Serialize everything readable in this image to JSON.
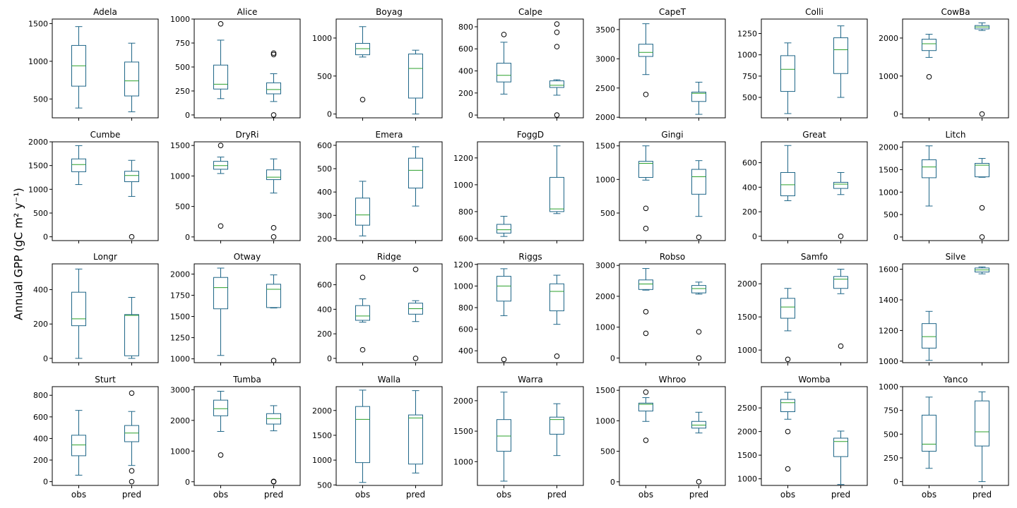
{
  "figure": {
    "ylabel": "Annual GPP (gC m² y⁻¹)",
    "box_color": "#1f6688",
    "median_color": "#2ca02c",
    "frame_color": "#000000"
  },
  "chart_data": [
    {
      "type": "box",
      "title": "Adela",
      "categories": [
        "obs",
        "pred"
      ],
      "ylim": [
        250,
        1560
      ],
      "yticks": [
        500,
        1000,
        1500
      ],
      "boxes": [
        {
          "min": 380,
          "q1": 670,
          "median": 940,
          "q3": 1210,
          "max": 1460,
          "outliers": []
        },
        {
          "min": 330,
          "q1": 540,
          "median": 740,
          "q3": 990,
          "max": 1240,
          "outliers": []
        }
      ]
    },
    {
      "type": "box",
      "title": "Alice",
      "categories": [
        "obs",
        "pred"
      ],
      "ylim": [
        -30,
        1000
      ],
      "yticks": [
        0,
        250,
        500,
        750,
        1000
      ],
      "boxes": [
        {
          "min": 170,
          "q1": 270,
          "median": 320,
          "q3": 520,
          "max": 780,
          "outliers": [
            950
          ]
        },
        {
          "min": 140,
          "q1": 220,
          "median": 265,
          "q3": 335,
          "max": 430,
          "outliers": [
            0,
            630,
            645
          ]
        }
      ]
    },
    {
      "type": "box",
      "title": "Boyag",
      "categories": [
        "obs",
        "pred"
      ],
      "ylim": [
        -50,
        1250
      ],
      "yticks": [
        0,
        500,
        1000
      ],
      "boxes": [
        {
          "min": 750,
          "q1": 780,
          "median": 860,
          "q3": 930,
          "max": 1150,
          "outliers": [
            190
          ]
        },
        {
          "min": 0,
          "q1": 210,
          "median": 600,
          "q3": 790,
          "max": 840,
          "outliers": []
        }
      ]
    },
    {
      "type": "box",
      "title": "Calpe",
      "categories": [
        "obs",
        "pred"
      ],
      "ylim": [
        -25,
        870
      ],
      "yticks": [
        0,
        200,
        400,
        600,
        800
      ],
      "boxes": [
        {
          "min": 190,
          "q1": 300,
          "median": 360,
          "q3": 470,
          "max": 660,
          "outliers": [
            730
          ]
        },
        {
          "min": 180,
          "q1": 250,
          "median": 270,
          "q3": 310,
          "max": 320,
          "outliers": [
            0,
            620,
            750,
            825
          ]
        }
      ]
    },
    {
      "type": "box",
      "title": "CapeT",
      "categories": [
        "obs",
        "pred"
      ],
      "ylim": [
        1990,
        3680
      ],
      "yticks": [
        2000,
        2500,
        3000,
        3500
      ],
      "boxes": [
        {
          "min": 2730,
          "q1": 3040,
          "median": 3110,
          "q3": 3250,
          "max": 3600,
          "outliers": [
            2390
          ]
        },
        {
          "min": 2050,
          "q1": 2270,
          "median": 2410,
          "q3": 2430,
          "max": 2600,
          "outliers": []
        }
      ]
    },
    {
      "type": "box",
      "title": "Colli",
      "categories": [
        "obs",
        "pred"
      ],
      "ylim": [
        260,
        1420
      ],
      "yticks": [
        500,
        750,
        1000,
        1250
      ],
      "boxes": [
        {
          "min": 310,
          "q1": 570,
          "median": 830,
          "q3": 990,
          "max": 1140,
          "outliers": []
        },
        {
          "min": 500,
          "q1": 780,
          "median": 1060,
          "q3": 1200,
          "max": 1340,
          "outliers": []
        }
      ]
    },
    {
      "type": "box",
      "title": "CowBa",
      "categories": [
        "obs",
        "pred"
      ],
      "ylim": [
        -100,
        2500
      ],
      "yticks": [
        0,
        1000,
        2000
      ],
      "boxes": [
        {
          "min": 1490,
          "q1": 1670,
          "median": 1850,
          "q3": 1970,
          "max": 2100,
          "outliers": [
            980
          ]
        },
        {
          "min": 2200,
          "q1": 2240,
          "median": 2290,
          "q3": 2330,
          "max": 2400,
          "outliers": [
            0
          ]
        }
      ]
    },
    {
      "type": "box",
      "title": "Cumbe",
      "categories": [
        "obs",
        "pred"
      ],
      "ylim": [
        -80,
        2000
      ],
      "yticks": [
        0,
        500,
        1000,
        1500,
        2000
      ],
      "boxes": [
        {
          "min": 1100,
          "q1": 1370,
          "median": 1520,
          "q3": 1640,
          "max": 1920,
          "outliers": []
        },
        {
          "min": 850,
          "q1": 1160,
          "median": 1290,
          "q3": 1380,
          "max": 1610,
          "outliers": [
            0
          ]
        }
      ]
    },
    {
      "type": "box",
      "title": "DryRi",
      "categories": [
        "obs",
        "pred"
      ],
      "ylim": [
        -60,
        1560
      ],
      "yticks": [
        0,
        500,
        1000,
        1500
      ],
      "boxes": [
        {
          "min": 1040,
          "q1": 1110,
          "median": 1170,
          "q3": 1240,
          "max": 1310,
          "outliers": [
            180,
            1500
          ]
        },
        {
          "min": 720,
          "q1": 940,
          "median": 980,
          "q3": 1100,
          "max": 1280,
          "outliers": [
            0,
            150
          ]
        }
      ]
    },
    {
      "type": "box",
      "title": "Emera",
      "categories": [
        "obs",
        "pred"
      ],
      "ylim": [
        192,
        615
      ],
      "yticks": [
        200,
        300,
        400,
        500,
        600
      ],
      "boxes": [
        {
          "min": 212,
          "q1": 258,
          "median": 302,
          "q3": 374,
          "max": 446,
          "outliers": []
        },
        {
          "min": 340,
          "q1": 417,
          "median": 493,
          "q3": 545,
          "max": 594,
          "outliers": []
        }
      ]
    },
    {
      "type": "box",
      "title": "FoggD",
      "categories": [
        "obs",
        "pred"
      ],
      "ylim": [
        584,
        1320
      ],
      "yticks": [
        600,
        800,
        1000,
        1200
      ],
      "boxes": [
        {
          "min": 615,
          "q1": 640,
          "median": 665,
          "q3": 705,
          "max": 765,
          "outliers": []
        },
        {
          "min": 785,
          "q1": 800,
          "median": 820,
          "q3": 1055,
          "max": 1290,
          "outliers": []
        }
      ]
    },
    {
      "type": "box",
      "title": "Gingi",
      "categories": [
        "obs",
        "pred"
      ],
      "ylim": [
        90,
        1560
      ],
      "yticks": [
        500,
        1000,
        1500
      ],
      "boxes": [
        {
          "min": 990,
          "q1": 1030,
          "median": 1240,
          "q3": 1270,
          "max": 1500,
          "outliers": [
            270,
            570
          ]
        },
        {
          "min": 450,
          "q1": 780,
          "median": 1040,
          "q3": 1150,
          "max": 1280,
          "outliers": [
            140
          ]
        }
      ]
    },
    {
      "type": "box",
      "title": "Great",
      "categories": [
        "obs",
        "pred"
      ],
      "ylim": [
        -35,
        770
      ],
      "yticks": [
        0,
        200,
        400,
        600
      ],
      "boxes": [
        {
          "min": 290,
          "q1": 330,
          "median": 420,
          "q3": 520,
          "max": 740,
          "outliers": []
        },
        {
          "min": 340,
          "q1": 390,
          "median": 425,
          "q3": 440,
          "max": 520,
          "outliers": [
            0
          ]
        }
      ]
    },
    {
      "type": "box",
      "title": "Litch",
      "categories": [
        "obs",
        "pred"
      ],
      "ylim": [
        -80,
        2120
      ],
      "yticks": [
        0,
        500,
        1000,
        1500,
        2000
      ],
      "boxes": [
        {
          "min": 690,
          "q1": 1320,
          "median": 1560,
          "q3": 1720,
          "max": 2030,
          "outliers": []
        },
        {
          "min": 1330,
          "q1": 1340,
          "median": 1600,
          "q3": 1640,
          "max": 1750,
          "outliers": [
            0,
            650
          ]
        }
      ]
    },
    {
      "type": "box",
      "title": "Longr",
      "categories": [
        "obs",
        "pred"
      ],
      "ylim": [
        -25,
        550
      ],
      "yticks": [
        0,
        200,
        400
      ],
      "boxes": [
        {
          "min": 0,
          "q1": 190,
          "median": 230,
          "q3": 385,
          "max": 520,
          "outliers": []
        },
        {
          "min": 0,
          "q1": 15,
          "median": 250,
          "q3": 255,
          "max": 355,
          "outliers": []
        }
      ]
    },
    {
      "type": "box",
      "title": "Otway",
      "categories": [
        "obs",
        "pred"
      ],
      "ylim": [
        955,
        2120
      ],
      "yticks": [
        1000,
        1250,
        1500,
        1750,
        2000
      ],
      "boxes": [
        {
          "min": 1040,
          "q1": 1590,
          "median": 1840,
          "q3": 1960,
          "max": 2070,
          "outliers": []
        },
        {
          "min": 1600,
          "q1": 1605,
          "median": 1820,
          "q3": 1880,
          "max": 1990,
          "outliers": [
            980
          ]
        }
      ]
    },
    {
      "type": "box",
      "title": "Ridge",
      "categories": [
        "obs",
        "pred"
      ],
      "ylim": [
        -35,
        770
      ],
      "yticks": [
        0,
        200,
        400,
        600
      ],
      "boxes": [
        {
          "min": 295,
          "q1": 310,
          "median": 345,
          "q3": 430,
          "max": 485,
          "outliers": [
            70,
            660
          ]
        },
        {
          "min": 300,
          "q1": 360,
          "median": 405,
          "q3": 450,
          "max": 470,
          "outliers": [
            0,
            725
          ]
        }
      ]
    },
    {
      "type": "box",
      "title": "Riggs",
      "categories": [
        "obs",
        "pred"
      ],
      "ylim": [
        290,
        1205
      ],
      "yticks": [
        400,
        600,
        800,
        1000,
        1200
      ],
      "boxes": [
        {
          "min": 725,
          "q1": 860,
          "median": 1000,
          "q3": 1090,
          "max": 1160,
          "outliers": [
            320
          ]
        },
        {
          "min": 645,
          "q1": 770,
          "median": 950,
          "q3": 1020,
          "max": 1100,
          "outliers": [
            350
          ]
        }
      ]
    },
    {
      "type": "box",
      "title": "Robso",
      "categories": [
        "obs",
        "pred"
      ],
      "ylim": [
        -150,
        3050
      ],
      "yticks": [
        0,
        1000,
        2000,
        3000
      ],
      "boxes": [
        {
          "min": 2200,
          "q1": 2220,
          "median": 2400,
          "q3": 2530,
          "max": 2900,
          "outliers": [
            800,
            1500
          ]
        },
        {
          "min": 2070,
          "q1": 2110,
          "median": 2250,
          "q3": 2350,
          "max": 2460,
          "outliers": [
            0,
            850
          ]
        }
      ]
    },
    {
      "type": "box",
      "title": "Samfo",
      "categories": [
        "obs",
        "pred"
      ],
      "ylim": [
        810,
        2300
      ],
      "yticks": [
        1000,
        1500,
        2000
      ],
      "boxes": [
        {
          "min": 1290,
          "q1": 1480,
          "median": 1650,
          "q3": 1780,
          "max": 1930,
          "outliers": [
            860
          ]
        },
        {
          "min": 1850,
          "q1": 1930,
          "median": 2070,
          "q3": 2110,
          "max": 2220,
          "outliers": [
            1060
          ]
        }
      ]
    },
    {
      "type": "box",
      "title": "Silve",
      "categories": [
        "obs",
        "pred"
      ],
      "ylim": [
        990,
        1635
      ],
      "yticks": [
        1000,
        1200,
        1400,
        1600
      ],
      "boxes": [
        {
          "min": 1005,
          "q1": 1085,
          "median": 1160,
          "q3": 1245,
          "max": 1325,
          "outliers": []
        },
        {
          "min": 1570,
          "q1": 1582,
          "median": 1595,
          "q3": 1608,
          "max": 1615,
          "outliers": []
        }
      ]
    },
    {
      "type": "box",
      "title": "Sturt",
      "categories": [
        "obs",
        "pred"
      ],
      "ylim": [
        -35,
        880
      ],
      "yticks": [
        0,
        200,
        400,
        600,
        800
      ],
      "boxes": [
        {
          "min": 60,
          "q1": 240,
          "median": 340,
          "q3": 430,
          "max": 660,
          "outliers": []
        },
        {
          "min": 150,
          "q1": 370,
          "median": 450,
          "q3": 520,
          "max": 650,
          "outliers": [
            0,
            100,
            820
          ]
        }
      ]
    },
    {
      "type": "box",
      "title": "Tumba",
      "categories": [
        "obs",
        "pred"
      ],
      "ylim": [
        -120,
        3100
      ],
      "yticks": [
        0,
        1000,
        2000,
        3000
      ],
      "boxes": [
        {
          "min": 1640,
          "q1": 2150,
          "median": 2380,
          "q3": 2660,
          "max": 2950,
          "outliers": [
            870
          ]
        },
        {
          "min": 1660,
          "q1": 1880,
          "median": 2060,
          "q3": 2220,
          "max": 2480,
          "outliers": [
            0,
            10
          ]
        }
      ]
    },
    {
      "type": "box",
      "title": "Walla",
      "categories": [
        "obs",
        "pred"
      ],
      "ylim": [
        490,
        2480
      ],
      "yticks": [
        500,
        1000,
        1500,
        2000
      ],
      "boxes": [
        {
          "min": 550,
          "q1": 950,
          "median": 1820,
          "q3": 2080,
          "max": 2410,
          "outliers": []
        },
        {
          "min": 740,
          "q1": 920,
          "median": 1850,
          "q3": 1910,
          "max": 2400,
          "outliers": []
        }
      ]
    },
    {
      "type": "box",
      "title": "Warra",
      "categories": [
        "obs",
        "pred"
      ],
      "ylim": [
        610,
        2230
      ],
      "yticks": [
        1000,
        1500,
        2000
      ],
      "boxes": [
        {
          "min": 680,
          "q1": 1170,
          "median": 1420,
          "q3": 1690,
          "max": 2140,
          "outliers": []
        },
        {
          "min": 1100,
          "q1": 1450,
          "median": 1690,
          "q3": 1730,
          "max": 1950,
          "outliers": []
        }
      ]
    },
    {
      "type": "box",
      "title": "Whroo",
      "categories": [
        "obs",
        "pred"
      ],
      "ylim": [
        -60,
        1560
      ],
      "yticks": [
        0,
        500,
        1000,
        1500
      ],
      "boxes": [
        {
          "min": 990,
          "q1": 1160,
          "median": 1270,
          "q3": 1290,
          "max": 1380,
          "outliers": [
            680,
            1470
          ]
        },
        {
          "min": 800,
          "q1": 880,
          "median": 930,
          "q3": 990,
          "max": 1140,
          "outliers": [
            0
          ]
        }
      ]
    },
    {
      "type": "box",
      "title": "Womba",
      "categories": [
        "obs",
        "pred"
      ],
      "ylim": [
        860,
        2950
      ],
      "yticks": [
        1000,
        1500,
        2000,
        2500
      ],
      "boxes": [
        {
          "min": 2260,
          "q1": 2420,
          "median": 2610,
          "q3": 2680,
          "max": 2830,
          "outliers": [
            1210,
            2000
          ]
        },
        {
          "min": 880,
          "q1": 1470,
          "median": 1790,
          "q3": 1860,
          "max": 2010,
          "outliers": []
        }
      ]
    },
    {
      "type": "box",
      "title": "Yanco",
      "categories": [
        "obs",
        "pred"
      ],
      "ylim": [
        -40,
        1000
      ],
      "yticks": [
        0,
        250,
        500,
        750,
        1000
      ],
      "boxes": [
        {
          "min": 140,
          "q1": 320,
          "median": 395,
          "q3": 700,
          "max": 890,
          "outliers": []
        },
        {
          "min": 0,
          "q1": 375,
          "median": 525,
          "q3": 850,
          "max": 945,
          "outliers": []
        }
      ]
    }
  ]
}
